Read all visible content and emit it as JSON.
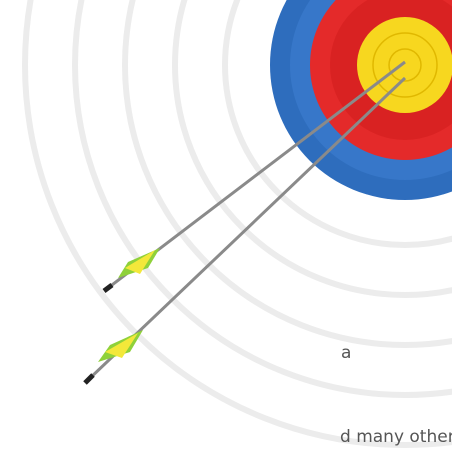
{
  "body": {
    "lines": [
      "a",
      "d many other"
    ]
  }
}
